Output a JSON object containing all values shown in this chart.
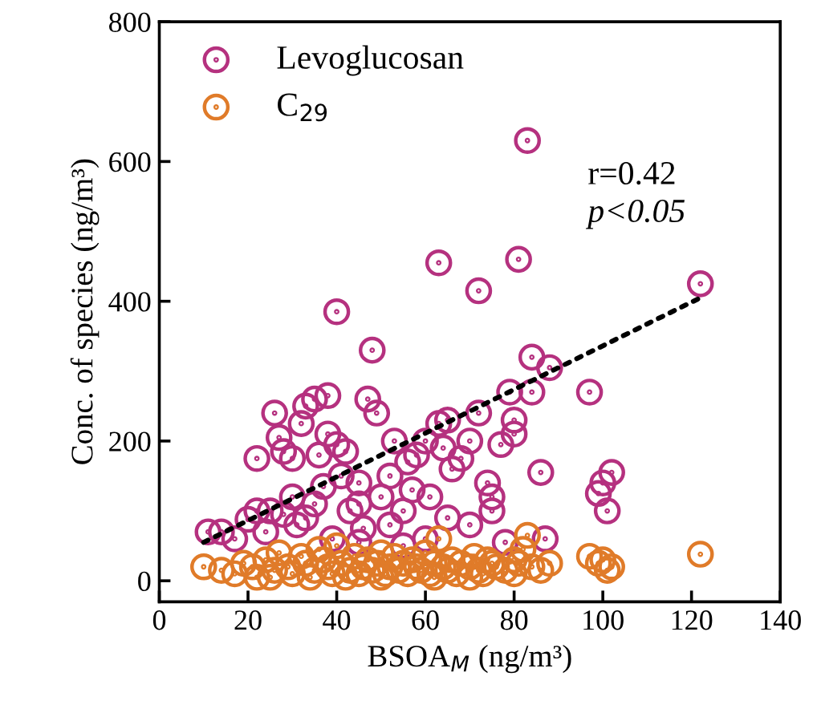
{
  "chart_data": {
    "type": "scatter",
    "xlabel": "BSOA$_{M}$ (ng/m³)",
    "ylabel": "Conc. of species (ng/m³)",
    "xlim": [
      0,
      140
    ],
    "xticks": [
      0,
      20,
      40,
      60,
      80,
      100,
      120,
      140
    ],
    "ylim": [
      -30,
      800
    ],
    "yticks": [
      0,
      200,
      400,
      600,
      800
    ],
    "grid": false,
    "legend": "top left",
    "marker": "circle",
    "annotations": [
      "r=0.42",
      "p<0.05"
    ],
    "series": [
      {
        "name": "Levoglucosan",
        "color": "#b5317f",
        "x": [
          11,
          17,
          20,
          22,
          25,
          22,
          26,
          27,
          28,
          30,
          32,
          33,
          35,
          38,
          36,
          38,
          40,
          40,
          42,
          37,
          35,
          30,
          28,
          33,
          45,
          45,
          48,
          47,
          49,
          50,
          52,
          53,
          55,
          56,
          57,
          58,
          60,
          61,
          63,
          63,
          64,
          65,
          66,
          68,
          70,
          72,
          72,
          74,
          75,
          77,
          79,
          80,
          80,
          81,
          83,
          84,
          84,
          86,
          87,
          88,
          97,
          99,
          100,
          101,
          102,
          122,
          14,
          24,
          43,
          46,
          52,
          60,
          65,
          70,
          75,
          78,
          55,
          45,
          39,
          31,
          41
        ],
        "values": [
          70,
          60,
          88,
          100,
          100,
          175,
          240,
          205,
          185,
          175,
          225,
          250,
          260,
          265,
          180,
          210,
          385,
          195,
          185,
          135,
          110,
          120,
          95,
          90,
          110,
          140,
          330,
          260,
          240,
          120,
          150,
          200,
          100,
          170,
          130,
          180,
          200,
          120,
          455,
          225,
          190,
          230,
          160,
          175,
          200,
          415,
          240,
          140,
          100,
          195,
          270,
          230,
          210,
          460,
          630,
          320,
          270,
          155,
          60,
          305,
          270,
          125,
          140,
          100,
          155,
          425,
          70,
          70,
          100,
          75,
          80,
          60,
          90,
          80,
          120,
          55,
          50,
          55,
          60,
          80,
          150
        ]
      },
      {
        "name": "C$_{29}$",
        "color": "#e07b29",
        "x": [
          10,
          14,
          17,
          19,
          21,
          22,
          24,
          26,
          27,
          29,
          30,
          32,
          33,
          35,
          36,
          37,
          38,
          39,
          40,
          41,
          43,
          44,
          45,
          46,
          47,
          48,
          49,
          50,
          51,
          52,
          53,
          54,
          55,
          56,
          57,
          58,
          59,
          60,
          61,
          62,
          63,
          64,
          65,
          66,
          67,
          68,
          70,
          71,
          72,
          73,
          74,
          75,
          76,
          78,
          80,
          81,
          82,
          83,
          84,
          86,
          88,
          97,
          99,
          100,
          101,
          102,
          122,
          25,
          34,
          42,
          50,
          62,
          70,
          80
        ],
        "values": [
          20,
          15,
          10,
          25,
          20,
          5,
          30,
          15,
          40,
          20,
          10,
          35,
          25,
          15,
          45,
          30,
          20,
          10,
          50,
          25,
          15,
          35,
          10,
          20,
          30,
          15,
          25,
          40,
          10,
          20,
          35,
          15,
          25,
          10,
          30,
          20,
          15,
          40,
          10,
          25,
          60,
          20,
          15,
          30,
          10,
          25,
          20,
          35,
          15,
          10,
          30,
          25,
          20,
          15,
          30,
          25,
          45,
          65,
          20,
          15,
          25,
          35,
          25,
          30,
          15,
          20,
          38,
          5,
          5,
          5,
          5,
          5,
          5,
          10
        ]
      },
      {
        "type": "line",
        "x": [
          10,
          122
        ],
        "values": [
          55,
          405
        ],
        "color": "#000000",
        "line_style": "dotted",
        "marker": "none"
      }
    ]
  }
}
